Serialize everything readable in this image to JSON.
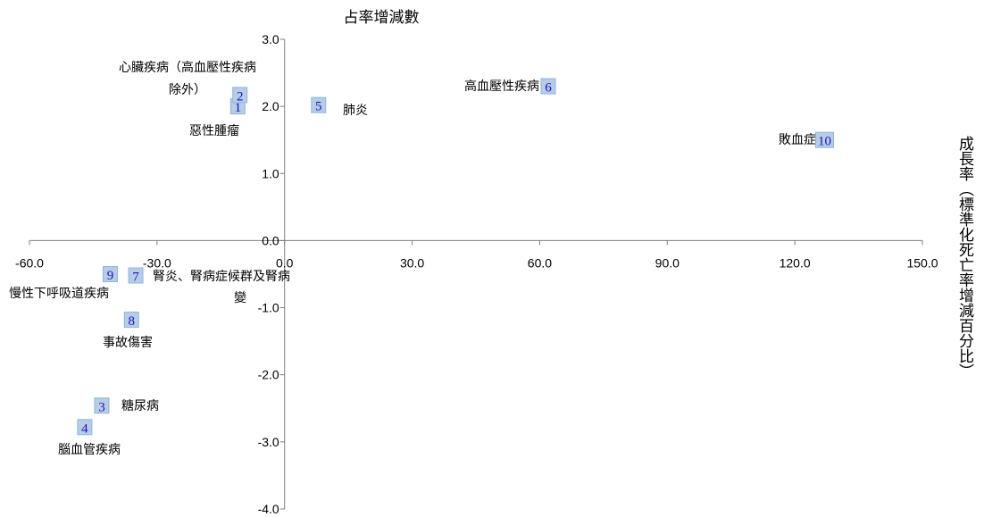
{
  "chart_data": {
    "type": "scatter",
    "title": "占率增減數",
    "xlabel": "",
    "ylabel": "成長率（標準化死亡率增減百分比）",
    "xlim": [
      -60,
      150
    ],
    "ylim": [
      -4,
      3
    ],
    "x_ticks": [
      "-60.0",
      "-30.0",
      "0.0",
      "30.0",
      "60.0",
      "90.0",
      "120.0",
      "150.0"
    ],
    "y_ticks": [
      "3.0",
      "2.0",
      "1.0",
      "0.0",
      "-1.0",
      "-2.0",
      "-3.0",
      "-4.0"
    ],
    "grid": false,
    "marker_color": "#b8cce4",
    "marker_border": "#8eb4e3",
    "number_color": "#1414c8",
    "points": [
      {
        "id": "1",
        "name": "惡性腫瘤",
        "x": -11,
        "y": 2.0
      },
      {
        "id": "2",
        "name": "心臟疾病（高血壓性疾病除外）",
        "x": -10.5,
        "y": 2.17
      },
      {
        "id": "3",
        "name": "糖尿病",
        "x": -43,
        "y": -2.46
      },
      {
        "id": "4",
        "name": "腦血管疾病",
        "x": -47,
        "y": -2.78
      },
      {
        "id": "5",
        "name": "肺炎",
        "x": 8,
        "y": 2.02
      },
      {
        "id": "6",
        "name": "高血壓性疾病",
        "x": 62,
        "y": 2.3
      },
      {
        "id": "7",
        "name": "腎炎、腎病症候群及腎病變",
        "x": -35,
        "y": -0.52
      },
      {
        "id": "8",
        "name": "事故傷害",
        "x": -36,
        "y": -1.18
      },
      {
        "id": "9",
        "name": "慢性下呼吸道疾病",
        "x": -41,
        "y": -0.5
      },
      {
        "id": "10",
        "name": "敗血症",
        "x": 127,
        "y": 1.5
      }
    ]
  }
}
